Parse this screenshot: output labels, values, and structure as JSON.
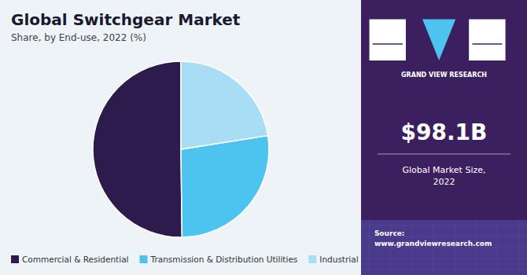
{
  "chart_data": {
    "type": "pie",
    "title": "Global Switchgear Market",
    "subtitle": "Share, by End-use, 2022 (%)",
    "categories": [
      "Commercial & Residential",
      "Transmission & Distribution Utilities",
      "Industrial"
    ],
    "values": [
      50.2,
      27.3,
      22.5
    ],
    "colors": [
      "#2d1b4e",
      "#4dc3f0",
      "#a8ddf5"
    ],
    "legend": "bottom",
    "annotations": [
      "GRAND VIEW RESEARCH",
      "$98.1B",
      "Global Market Size,\n2022",
      "Source:\nwww.grandviewresearch.com"
    ]
  }
}
